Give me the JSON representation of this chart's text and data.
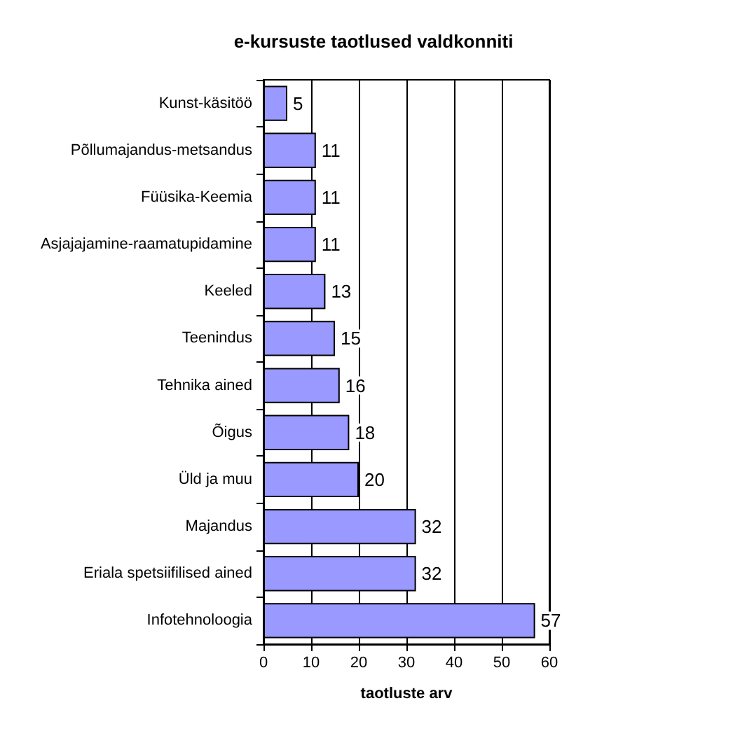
{
  "chart_data": {
    "type": "bar",
    "orientation": "horizontal",
    "title": "e-kursuste taotlused valdkonniti",
    "xlabel": "taotluste arv",
    "categories": [
      "Kunst-käsitöö",
      "Põllumajandus-metsandus",
      "Füüsika-Keemia",
      "Asjajajamine-raamatupidamine",
      "Keeled",
      "Teenindus",
      "Tehnika ained",
      "Õigus",
      "Üld ja muu",
      "Majandus",
      "Eriala spetsiifilised ained",
      "Infotehnoloogia"
    ],
    "values": [
      5,
      11,
      11,
      11,
      13,
      15,
      16,
      18,
      20,
      32,
      32,
      57
    ],
    "color": "#9999ff",
    "xlim": [
      0,
      60
    ],
    "xticks": [
      0,
      10,
      20,
      30,
      40,
      50,
      60
    ],
    "grid": "x",
    "data_labels": true
  }
}
